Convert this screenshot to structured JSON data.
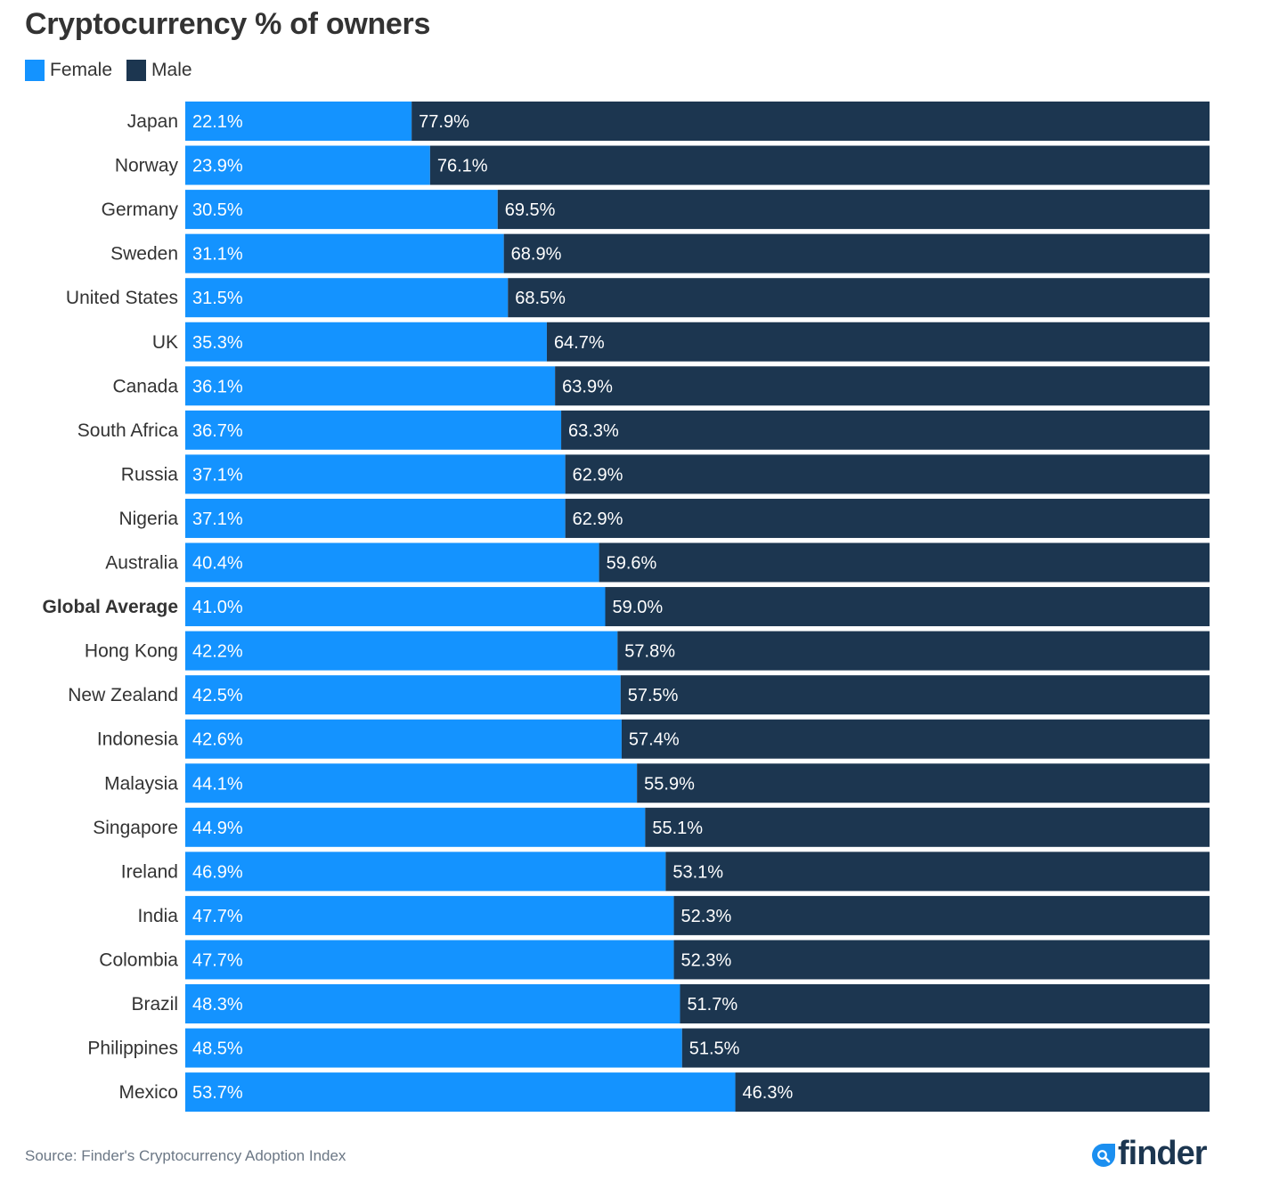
{
  "colors": {
    "female": "#1493ff",
    "male": "#1c3650",
    "title": "#333333",
    "source": "#6b7785",
    "logo_accent": "#1b8ff0"
  },
  "logo": {
    "text": "finder",
    "icon": "magnifier-drop-icon"
  },
  "source": "Source: Finder's Cryptocurrency Adoption Index",
  "chart_data": {
    "type": "bar",
    "orientation": "horizontal",
    "stacked": true,
    "normalized": "100%",
    "title": "Cryptocurrency % of owners",
    "xlabel": "",
    "ylabel": "",
    "xlim": [
      0,
      100
    ],
    "grid": false,
    "legend_position": "top-left",
    "legend": [
      "Female",
      "Male"
    ],
    "categories": [
      "Japan",
      "Norway",
      "Germany",
      "Sweden",
      "United States",
      "UK",
      "Canada",
      "South Africa",
      "Russia",
      "Nigeria",
      "Australia",
      "Global Average",
      "Hong Kong",
      "New Zealand",
      "Indonesia",
      "Malaysia",
      "Singapore",
      "Ireland",
      "India",
      "Colombia",
      "Brazil",
      "Philippines",
      "Mexico"
    ],
    "highlighted_category": "Global Average",
    "series": [
      {
        "name": "Female",
        "values": [
          22.1,
          23.9,
          30.5,
          31.1,
          31.5,
          35.3,
          36.1,
          36.7,
          37.1,
          37.1,
          40.4,
          41.0,
          42.2,
          42.5,
          42.6,
          44.1,
          44.9,
          46.9,
          47.7,
          47.7,
          48.3,
          48.5,
          53.7
        ]
      },
      {
        "name": "Male",
        "values": [
          77.9,
          76.1,
          69.5,
          68.9,
          68.5,
          64.7,
          63.9,
          63.3,
          62.9,
          62.9,
          59.6,
          59.0,
          57.8,
          57.5,
          57.4,
          55.9,
          55.1,
          53.1,
          52.3,
          52.3,
          51.7,
          51.5,
          46.3
        ]
      }
    ],
    "value_label_format": "{v}%",
    "value_label_decimals": 1
  }
}
